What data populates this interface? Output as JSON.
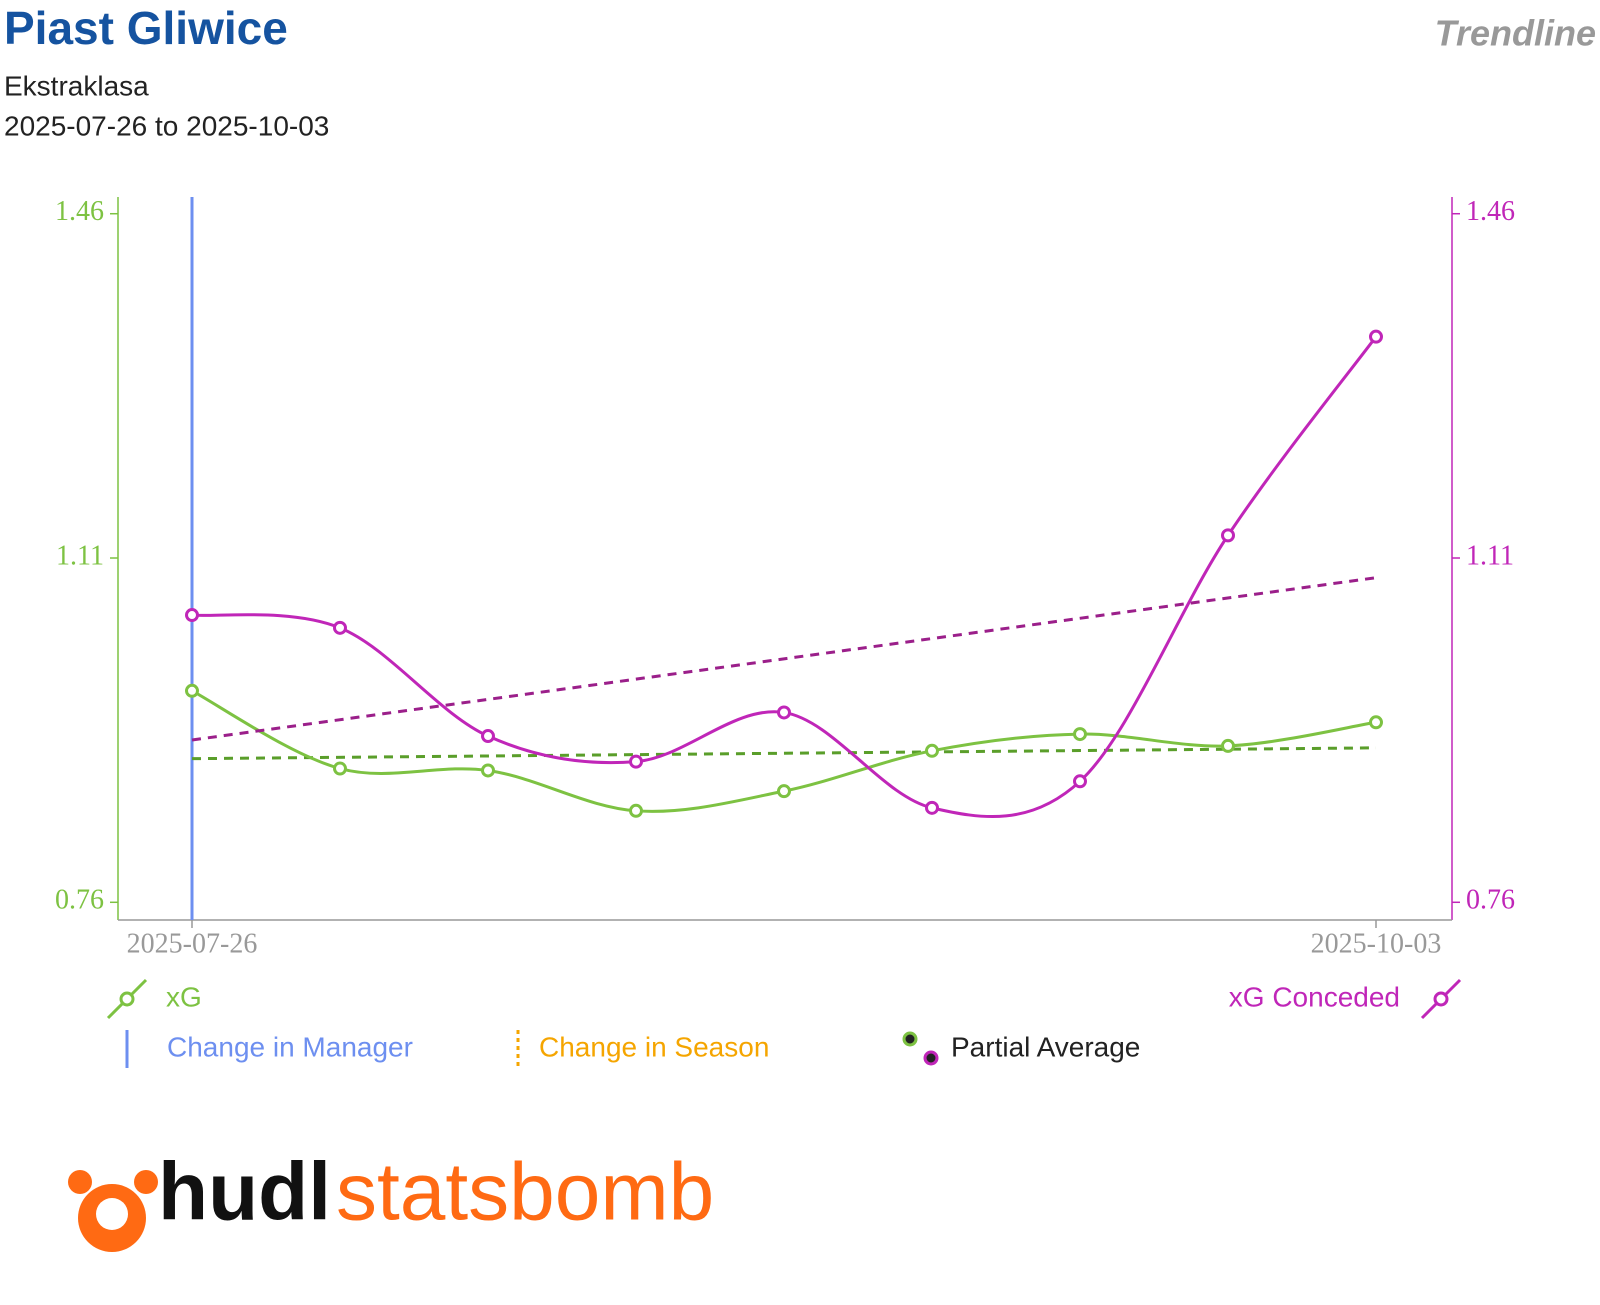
{
  "header": {
    "title": "Piast Gliwice",
    "subtitle": "Ekstraklasa",
    "date_range": "2025-07-26 to 2025-10-03",
    "badge": "Trendline"
  },
  "chart_data": {
    "type": "line",
    "categories": [
      "2025-07-26",
      null,
      null,
      null,
      null,
      null,
      null,
      null,
      "2025-10-03"
    ],
    "series": [
      {
        "name": "xG",
        "color": "#7dc242",
        "trend_color": "#5a9e2a",
        "axis": "y",
        "values": [
          0.975,
          0.896,
          0.894,
          0.853,
          0.873,
          0.914,
          0.931,
          0.919,
          0.943
        ],
        "trend": [
          0.906,
          0.917
        ]
      },
      {
        "name": "xG Conceded",
        "color": "#c026b8",
        "trend_color": "#9b1f8a",
        "axis": "y2",
        "values": [
          1.052,
          1.039,
          0.929,
          0.903,
          0.953,
          0.856,
          0.883,
          1.133,
          1.335
        ],
        "trend": [
          0.925,
          1.09
        ]
      }
    ],
    "ylim": [
      0.742,
      1.477
    ],
    "yticks": [
      0.76,
      1.11,
      1.46
    ],
    "y2lim": [
      0.742,
      1.477
    ],
    "y2ticks": [
      0.76,
      1.11,
      1.46
    ],
    "events": [
      {
        "category": 0,
        "kind": "Change in Manager",
        "color": "#6d8ff0"
      }
    ],
    "legend": [
      {
        "label": "Change in Manager",
        "color": "#6d8ff0"
      },
      {
        "label": "Change in Season",
        "color": "#f5a500"
      },
      {
        "label": "Partial Average",
        "color": "#222222"
      }
    ]
  },
  "logo": {
    "part1": "hudl",
    "part2": "statsbomb"
  }
}
